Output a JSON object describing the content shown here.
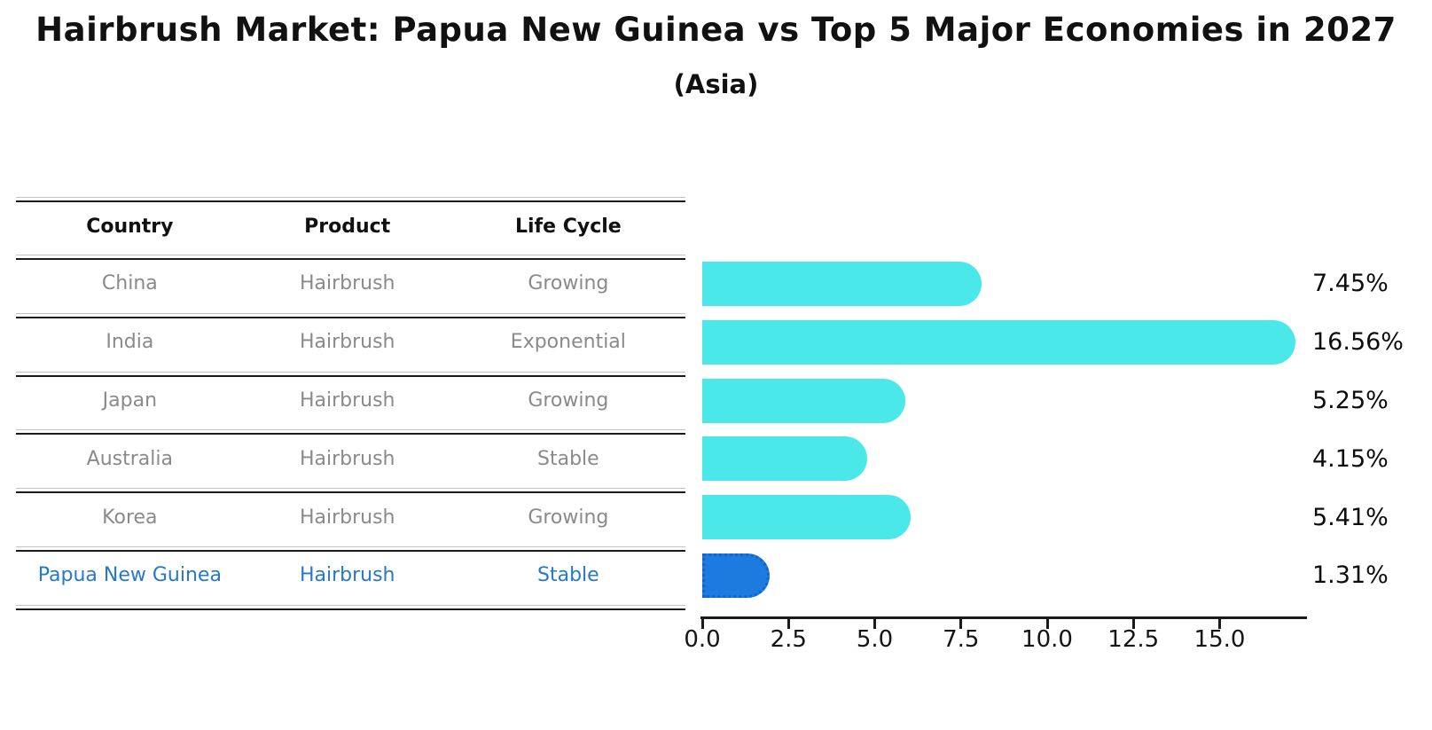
{
  "title": "Hairbrush Market: Papua New Guinea vs Top 5 Major Economies in 2027",
  "subtitle": "(Asia)",
  "table": {
    "headers": [
      "Country",
      "Product",
      "Life Cycle"
    ],
    "rows": [
      {
        "country": "China",
        "product": "Hairbrush",
        "life_cycle": "Growing",
        "highlight": false
      },
      {
        "country": "India",
        "product": "Hairbrush",
        "life_cycle": "Exponential",
        "highlight": false
      },
      {
        "country": "Japan",
        "product": "Hairbrush",
        "life_cycle": "Growing",
        "highlight": false
      },
      {
        "country": "Australia",
        "product": "Hairbrush",
        "life_cycle": "Stable",
        "highlight": false
      },
      {
        "country": "Korea",
        "product": "Hairbrush",
        "life_cycle": "Growing",
        "highlight": false
      },
      {
        "country": "Papua New Guinea",
        "product": "Hairbrush",
        "life_cycle": "Stable",
        "highlight": true
      }
    ]
  },
  "chart_data": {
    "type": "bar",
    "orientation": "horizontal",
    "title": "Hairbrush Market: Papua New Guinea vs Top 5 Major Economies in 2027",
    "subtitle": "(Asia)",
    "categories": [
      "China",
      "India",
      "Japan",
      "Australia",
      "Korea",
      "Papua New Guinea"
    ],
    "values": [
      7.45,
      16.56,
      5.25,
      4.15,
      5.41,
      1.31
    ],
    "value_labels": [
      "7.45%",
      "16.56%",
      "5.25%",
      "4.15%",
      "5.41%",
      "1.31%"
    ],
    "highlight_index": 5,
    "x_ticks": [
      0.0,
      2.5,
      5.0,
      7.5,
      10.0,
      12.5,
      15.0
    ],
    "x_tick_labels": [
      "0.0",
      "2.5",
      "5.0",
      "7.5",
      "10.0",
      "12.5",
      "15.0"
    ],
    "xlim": [
      0,
      17.5
    ],
    "xlabel": "",
    "ylabel": "",
    "grid": false,
    "legend": false
  },
  "colors": {
    "bar": "#4ae8e8",
    "highlight_bar": "#1d7be0",
    "highlight_bar_border": "#1463cf",
    "highlight_text": "#2678c8",
    "table_text": "#8a8a8a",
    "axis": "#1a1a1a"
  }
}
